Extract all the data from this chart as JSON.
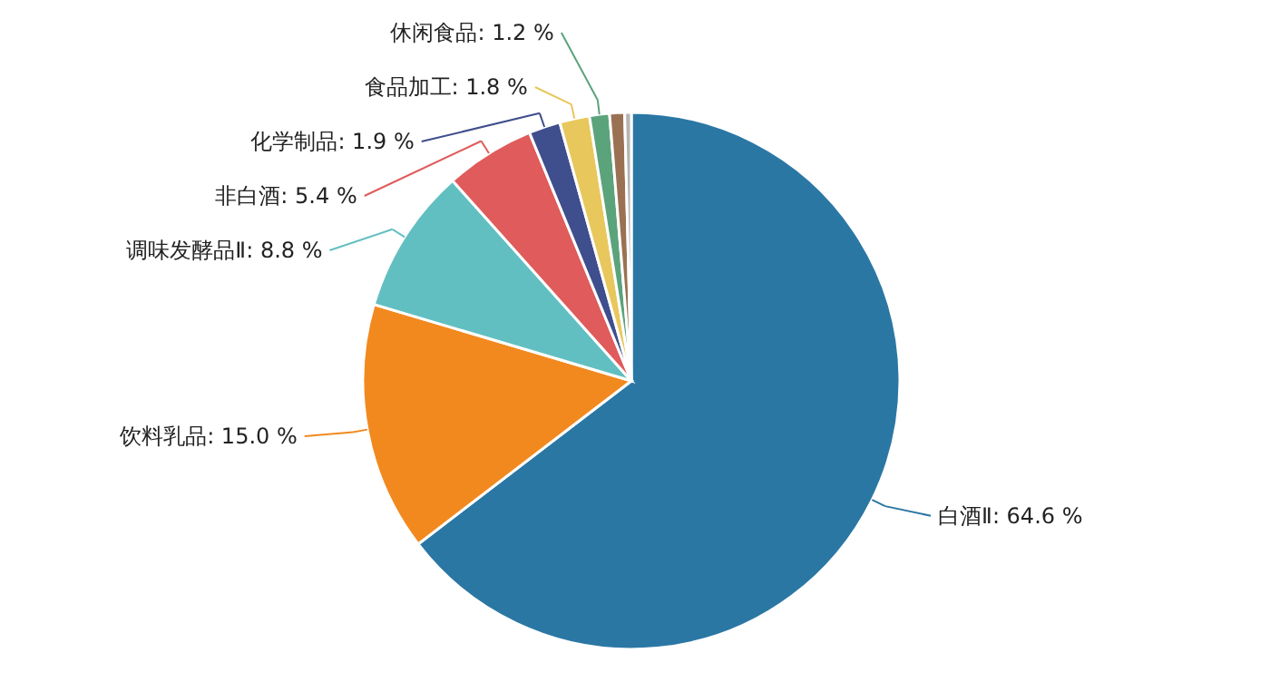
{
  "chart_data": {
    "type": "pie",
    "categories": [
      "白酒Ⅱ",
      "饮料乳品",
      "调味发酵品Ⅱ",
      "非白酒",
      "化学制品",
      "食品加工",
      "休闲食品",
      null,
      null
    ],
    "values": [
      64.6,
      15.0,
      8.8,
      5.4,
      1.9,
      1.8,
      1.2,
      0.9,
      0.4
    ],
    "value_labels": [
      "64.6 %",
      "15.0 %",
      "8.8 %",
      "5.4 %",
      "1.9 %",
      "1.8 %",
      "1.2 %",
      null,
      null
    ],
    "colors": [
      "#2b77a4",
      "#f2891f",
      "#62bfc1",
      "#e05b5b",
      "#3f4e8c",
      "#e8c75c",
      "#5ba37b",
      "#9a7152",
      "#b5b5b5"
    ]
  }
}
